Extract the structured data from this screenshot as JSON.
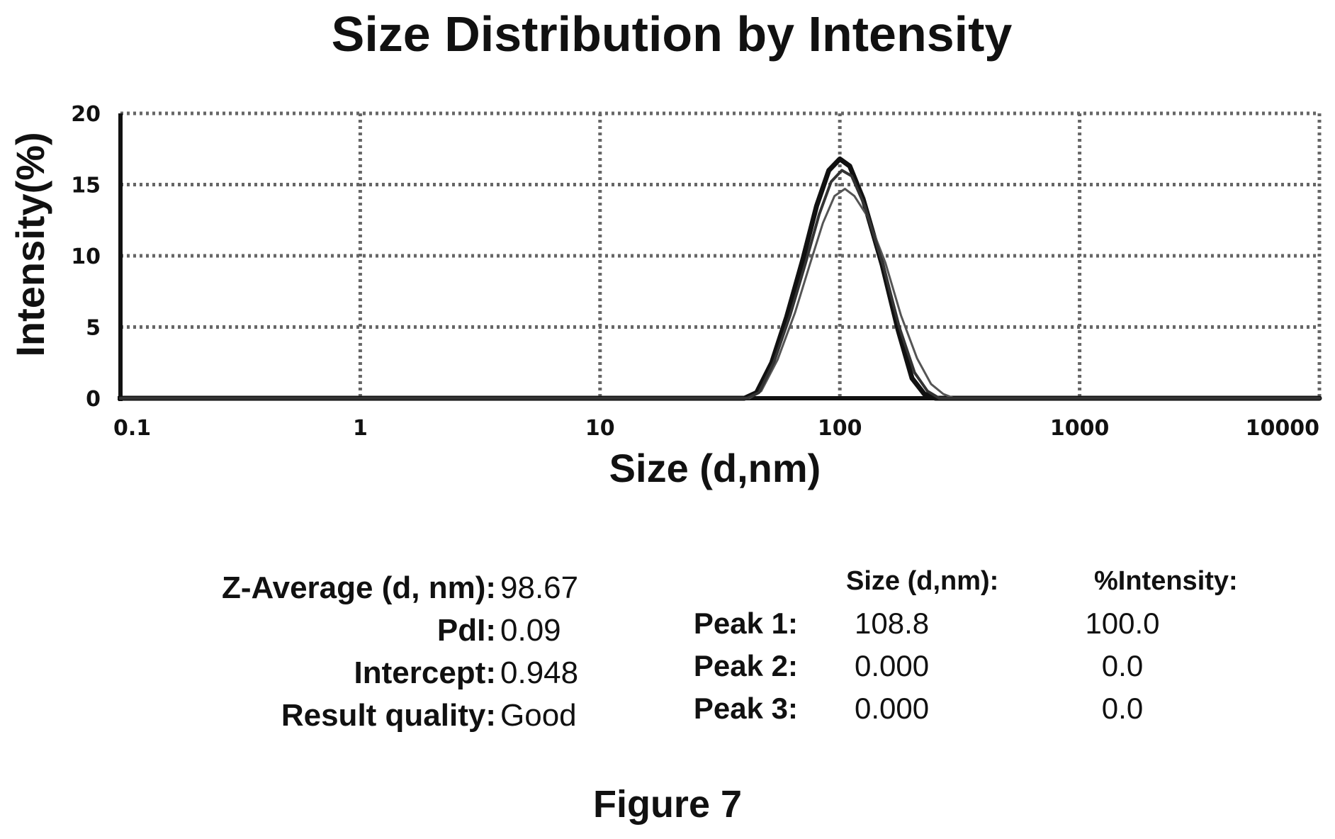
{
  "chart_data": {
    "type": "line",
    "title": "Size Distribution by Intensity",
    "xlabel": "Size (d,nm)",
    "ylabel": "Intensity(%)",
    "x_scale": "log",
    "xlim": [
      0.1,
      10000
    ],
    "ylim": [
      0,
      20
    ],
    "x_ticks": [
      "0.1",
      "1",
      "10",
      "100",
      "1000",
      "10000"
    ],
    "y_ticks": [
      "0",
      "5",
      "10",
      "15",
      "20"
    ],
    "grid": true,
    "series": [
      {
        "x": [
          0.1,
          40,
          45,
          52,
          60,
          70,
          80,
          90,
          100,
          110,
          125,
          150,
          175,
          200,
          225,
          250,
          10000
        ],
        "y": [
          0,
          0,
          0.4,
          2.5,
          5.7,
          9.7,
          13.5,
          16.0,
          16.8,
          16.3,
          14.0,
          9.4,
          4.8,
          1.4,
          0.3,
          0,
          0
        ]
      },
      {
        "x": [
          0.1,
          42,
          47,
          55,
          65,
          75,
          85,
          95,
          105,
          115,
          130,
          155,
          180,
          210,
          240,
          270,
          300,
          10000
        ],
        "y": [
          0,
          0,
          0.5,
          2.7,
          6.0,
          9.4,
          12.3,
          14.2,
          14.7,
          14.2,
          12.8,
          9.5,
          5.8,
          2.8,
          1.0,
          0.3,
          0,
          0
        ]
      },
      {
        "x": [
          0.1,
          41,
          46,
          53,
          62,
          72,
          82,
          92,
          102,
          112,
          127,
          152,
          177,
          205,
          232,
          260,
          10000
        ],
        "y": [
          0,
          0,
          0.4,
          2.5,
          5.8,
          9.5,
          12.9,
          15.2,
          16.0,
          15.6,
          13.5,
          9.3,
          5.0,
          1.8,
          0.5,
          0,
          0
        ]
      }
    ]
  },
  "stats": {
    "z_average_label": "Z-Average (d, nm):",
    "z_average_value": "98.67",
    "pdi_label": "PdI:",
    "pdi_value": "0.09",
    "intercept_label": "Intercept:",
    "intercept_value": "0.948",
    "quality_label": "Result quality:",
    "quality_value": "Good"
  },
  "peaks": {
    "size_header": "Size (d,nm):",
    "intensity_header": "%Intensity:",
    "rows": [
      {
        "label": "Peak 1:",
        "size": "108.8",
        "intensity": "100.0"
      },
      {
        "label": "Peak 2:",
        "size": "0.000",
        "intensity": "0.0"
      },
      {
        "label": "Peak 3:",
        "size": "0.000",
        "intensity": "0.0"
      }
    ]
  },
  "figure_label": "Figure 7"
}
